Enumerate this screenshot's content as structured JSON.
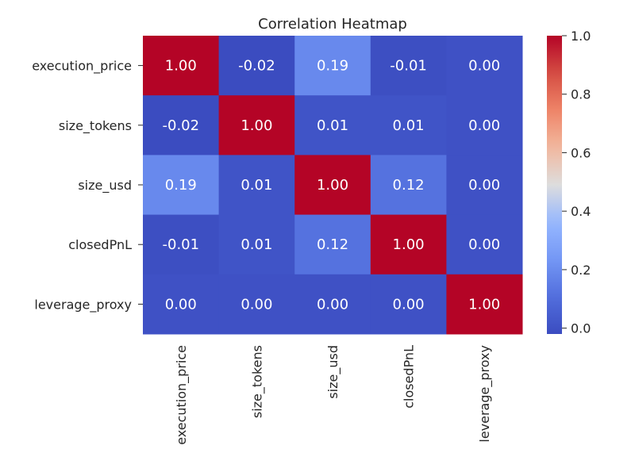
{
  "chart_data": {
    "type": "heatmap",
    "title": "Correlation Heatmap",
    "xlabel": "",
    "ylabel": "",
    "rows": [
      "execution_price",
      "size_tokens",
      "size_usd",
      "closedPnL",
      "leverage_proxy"
    ],
    "columns": [
      "execution_price",
      "size_tokens",
      "size_usd",
      "closedPnL",
      "leverage_proxy"
    ],
    "values": [
      [
        1.0,
        -0.02,
        0.19,
        -0.01,
        0.0
      ],
      [
        -0.02,
        1.0,
        0.01,
        0.01,
        0.0
      ],
      [
        0.19,
        0.01,
        1.0,
        0.12,
        0.0
      ],
      [
        -0.01,
        0.01,
        0.12,
        1.0,
        0.0
      ],
      [
        0.0,
        0.0,
        0.0,
        0.0,
        1.0
      ]
    ],
    "annotations": [
      [
        "1.00",
        "-0.02",
        "0.19",
        "-0.01",
        "0.00"
      ],
      [
        "-0.02",
        "1.00",
        "0.01",
        "0.01",
        "0.00"
      ],
      [
        "0.19",
        "0.01",
        "1.00",
        "0.12",
        "0.00"
      ],
      [
        "-0.01",
        "0.01",
        "0.12",
        "1.00",
        "0.00"
      ],
      [
        "0.00",
        "0.00",
        "0.00",
        "0.00",
        "1.00"
      ]
    ],
    "colormap": "coolwarm",
    "colorbar": {
      "range": [
        -0.02,
        1.0
      ],
      "ticks": [
        0.0,
        0.2,
        0.4,
        0.6,
        0.8,
        1.0
      ],
      "tick_labels": [
        "0.0",
        "0.2",
        "0.4",
        "0.6",
        "0.8",
        "1.0"
      ]
    },
    "grid": false,
    "legend": "right"
  }
}
